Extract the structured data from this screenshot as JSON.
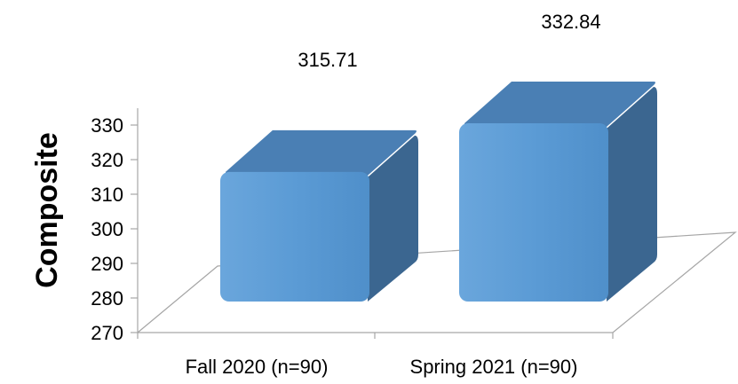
{
  "chart_data": {
    "type": "bar",
    "style": "3d",
    "categories": [
      "Fall 2020 (n=90)",
      "Spring 2021 (n=90)"
    ],
    "values": [
      315.71,
      332.84
    ],
    "value_labels": [
      "315.71",
      "332.84"
    ],
    "title": "",
    "xlabel": "",
    "ylabel": "Composite",
    "ylim": [
      270,
      330
    ],
    "yticks": [
      270,
      280,
      290,
      300,
      310,
      320,
      330
    ],
    "grid": false,
    "legend": "none",
    "colors": {
      "front": "#5b9bd5",
      "top": "#4a7fb4",
      "side": "#3b6690",
      "floor_line": "#a6a6a6"
    }
  }
}
